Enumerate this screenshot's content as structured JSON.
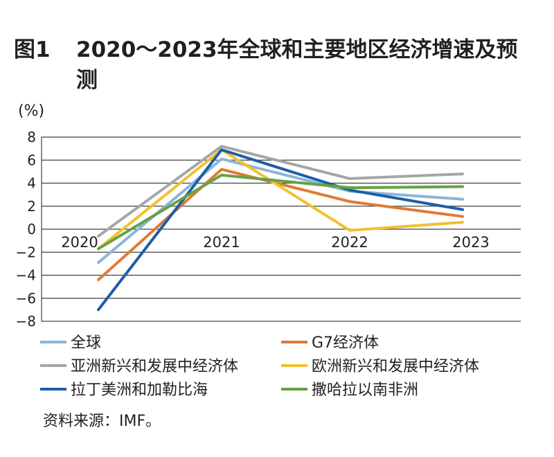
{
  "figure": {
    "label": "图1",
    "title": "2020～2023年全球和主要地区经济增速及预测",
    "unit": "(%)",
    "source": "资料来源：IMF。"
  },
  "colors": {
    "全球": "#8db4db",
    "G7经济体": "#e07a36",
    "亚洲新兴和发展中经济体": "#a6a6a6",
    "欧洲新兴和发展中经济体": "#f1c12e",
    "拉丁美洲和加勒比海": "#1b5fa6",
    "撒哈拉以南非洲": "#64a244"
  },
  "chart_data": {
    "type": "line",
    "x": [
      "2020",
      "2021",
      "2022",
      "2023"
    ],
    "ylim": [
      -8,
      8
    ],
    "yticks": [
      8,
      6,
      4,
      2,
      0,
      -2,
      -4,
      -6,
      -8
    ],
    "ytick_labels": [
      "8",
      "6",
      "4",
      "2",
      "0",
      "−2",
      "−4",
      "−6",
      "−8"
    ],
    "grid": true,
    "legend_position": "bottom",
    "series": [
      {
        "name": "全球",
        "values": [
          -2.9,
          6.1,
          3.3,
          2.6
        ]
      },
      {
        "name": "G7经济体",
        "values": [
          -4.4,
          5.2,
          2.4,
          1.1
        ]
      },
      {
        "name": "亚洲新兴和发展中经济体",
        "values": [
          -0.6,
          7.2,
          4.4,
          4.8
        ]
      },
      {
        "name": "欧洲新兴和发展中经济体",
        "values": [
          -1.7,
          6.9,
          -0.1,
          0.6
        ]
      },
      {
        "name": "拉丁美洲和加勒比海",
        "values": [
          -7.0,
          6.9,
          3.4,
          1.7
        ]
      },
      {
        "name": "撒哈拉以南非洲",
        "values": [
          -1.7,
          4.7,
          3.6,
          3.7
        ]
      }
    ]
  }
}
